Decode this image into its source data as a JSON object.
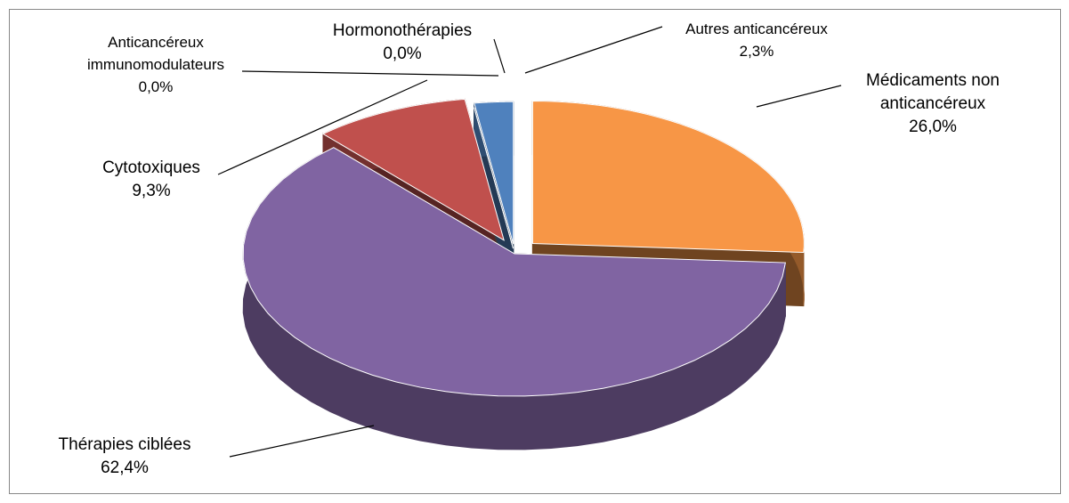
{
  "chart_data": {
    "type": "pie",
    "categories": [
      "Médicaments non anticancéreux",
      "Thérapies ciblées",
      "Cytotoxiques",
      "Anticancéreux immunomodulateurs",
      "Hormonothérapies",
      "Autres anticancéreux"
    ],
    "values": [
      26.0,
      62.4,
      9.3,
      0.0,
      0.0,
      2.3
    ],
    "value_labels": [
      "26,0%",
      "62,4%",
      "9,3%",
      "0,0%",
      "0,0%",
      "2,3%"
    ],
    "colors": [
      "#f79646",
      "#8064a2",
      "#c0504d",
      "#9bbb59",
      "#7f7f7f",
      "#4f81bd"
    ]
  }
}
